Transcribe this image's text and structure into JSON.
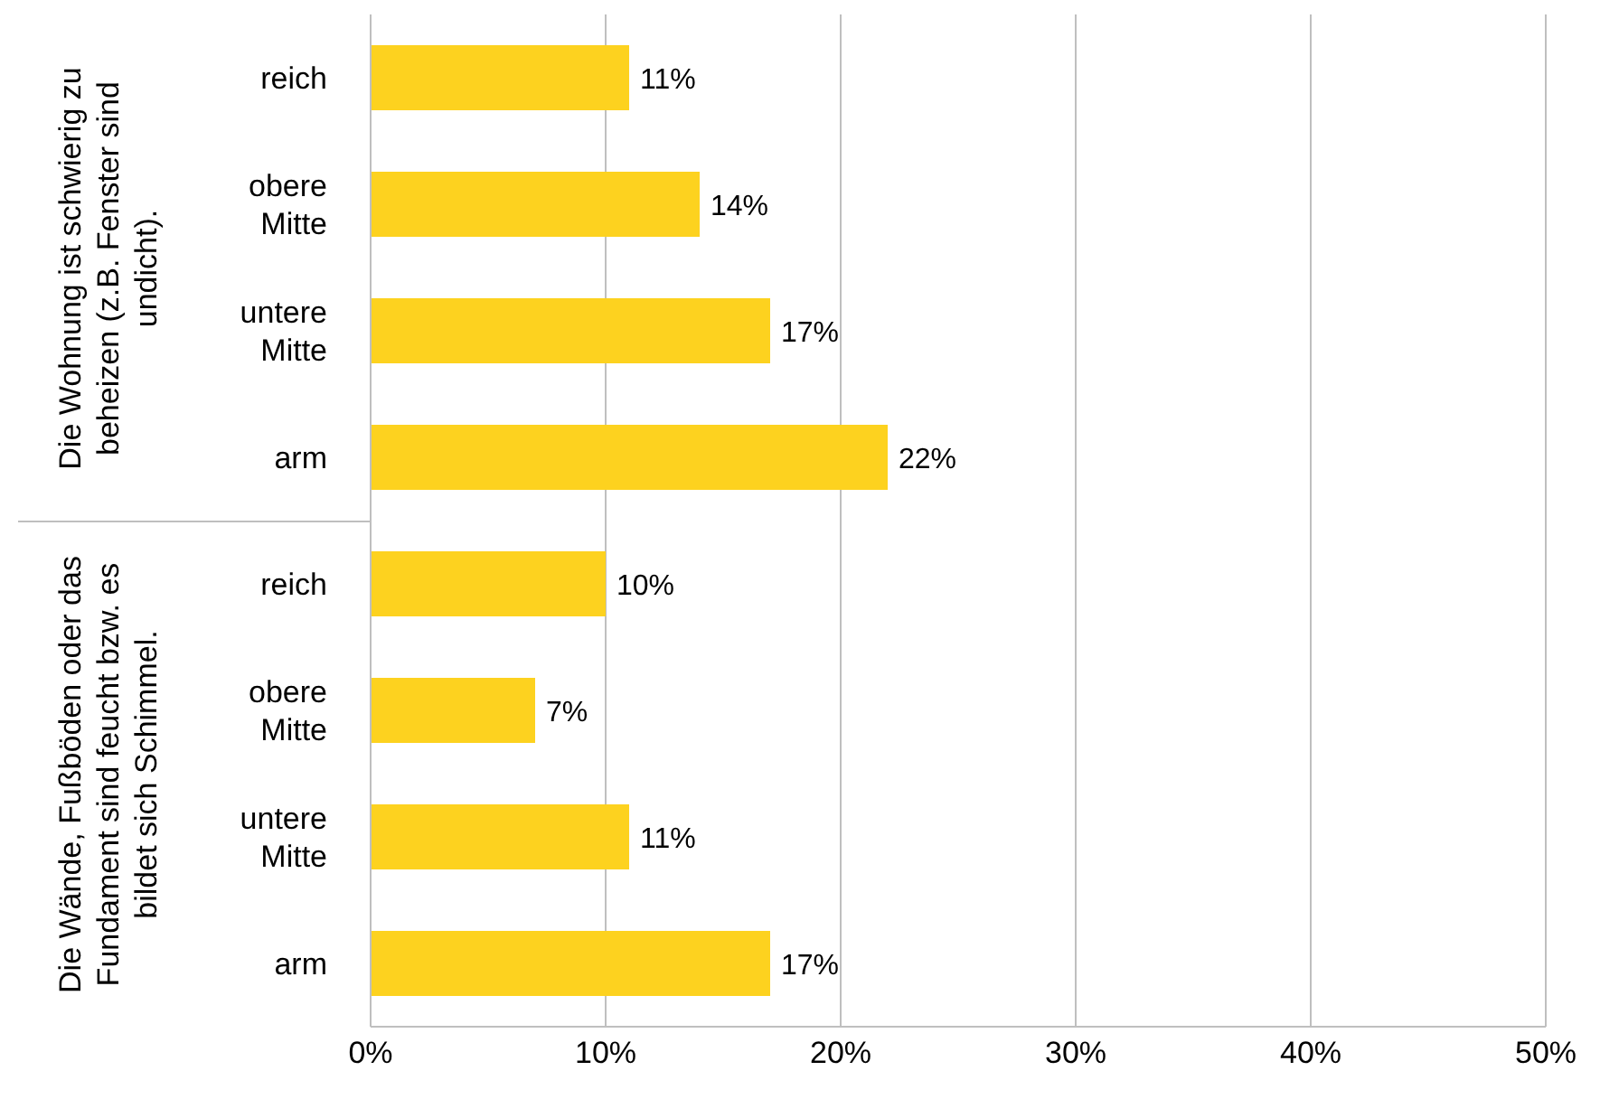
{
  "chart_data": {
    "type": "bar",
    "orientation": "horizontal",
    "categories": [
      "reich",
      "obere Mitte",
      "untere Mitte",
      "arm",
      "reich",
      "obere Mitte",
      "untere Mitte",
      "arm"
    ],
    "values": [
      11,
      14,
      17,
      22,
      10,
      7,
      11,
      17
    ],
    "value_labels": [
      "11%",
      "14%",
      "17%",
      "22%",
      "10%",
      "7%",
      "11%",
      "17%"
    ],
    "color": "#fdd21f",
    "xlim": [
      0,
      50
    ],
    "xticks": [
      {
        "value": 0,
        "label": "0%"
      },
      {
        "value": 10,
        "label": "10%"
      },
      {
        "value": 20,
        "label": "20%"
      },
      {
        "value": 30,
        "label": "30%"
      },
      {
        "value": 40,
        "label": "40%"
      },
      {
        "value": 50,
        "label": "50%"
      }
    ],
    "grid": "x",
    "annotations": [
      "Die Wohnung ist schwierig zu beheizen (z.B. Fenster sind undicht).",
      "Die Wände, Fußböden oder das Fundament sind feucht bzw. es bildet sich Schimmel."
    ]
  }
}
